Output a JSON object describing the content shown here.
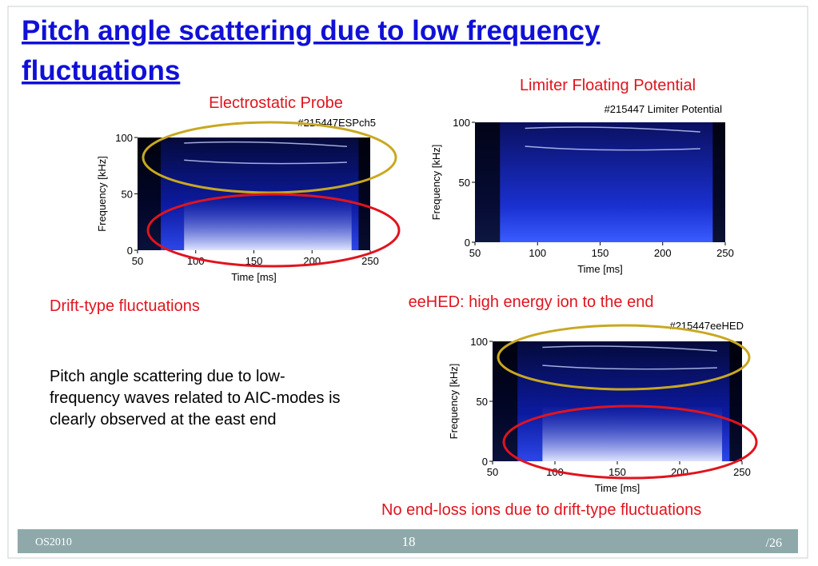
{
  "title": [
    "Pitch angle scattering due to low frequency",
    "fluctuations"
  ],
  "panels": [
    {
      "caption": "Electrostatic Probe",
      "label": "#215447ESPch5",
      "ylabel": "Frequency  [kHz]",
      "xlabel": "Time [ms]",
      "yticks": [
        0,
        50,
        100
      ],
      "xticks": [
        50,
        100,
        150,
        200,
        250
      ]
    },
    {
      "caption": "Limiter Floating Potential",
      "label": "#215447 Limiter Potential",
      "ylabel": "Frequency  [kHz]",
      "xlabel": "Time [ms]",
      "yticks": [
        0,
        50,
        100
      ],
      "xticks": [
        50,
        100,
        150,
        200,
        250
      ]
    },
    {
      "caption": "eeHED: high energy ion to the end",
      "label": "#215447eeHED",
      "ylabel": "Frequency  [kHz]",
      "xlabel": "Time [ms]",
      "yticks": [
        0,
        50,
        100
      ],
      "xticks": [
        50,
        100,
        150,
        200,
        250
      ]
    }
  ],
  "notes": {
    "drift": "Drift-type fluctuations",
    "noloss": "No end-loss ions due to drift-type fluctuations"
  },
  "body": [
    "Pitch angle scattering due to low-",
    "frequency waves related to AIC-modes is",
    "clearly observed at the east end"
  ],
  "footer": {
    "left": "OS2010",
    "page": "18",
    "total": "/26"
  }
}
